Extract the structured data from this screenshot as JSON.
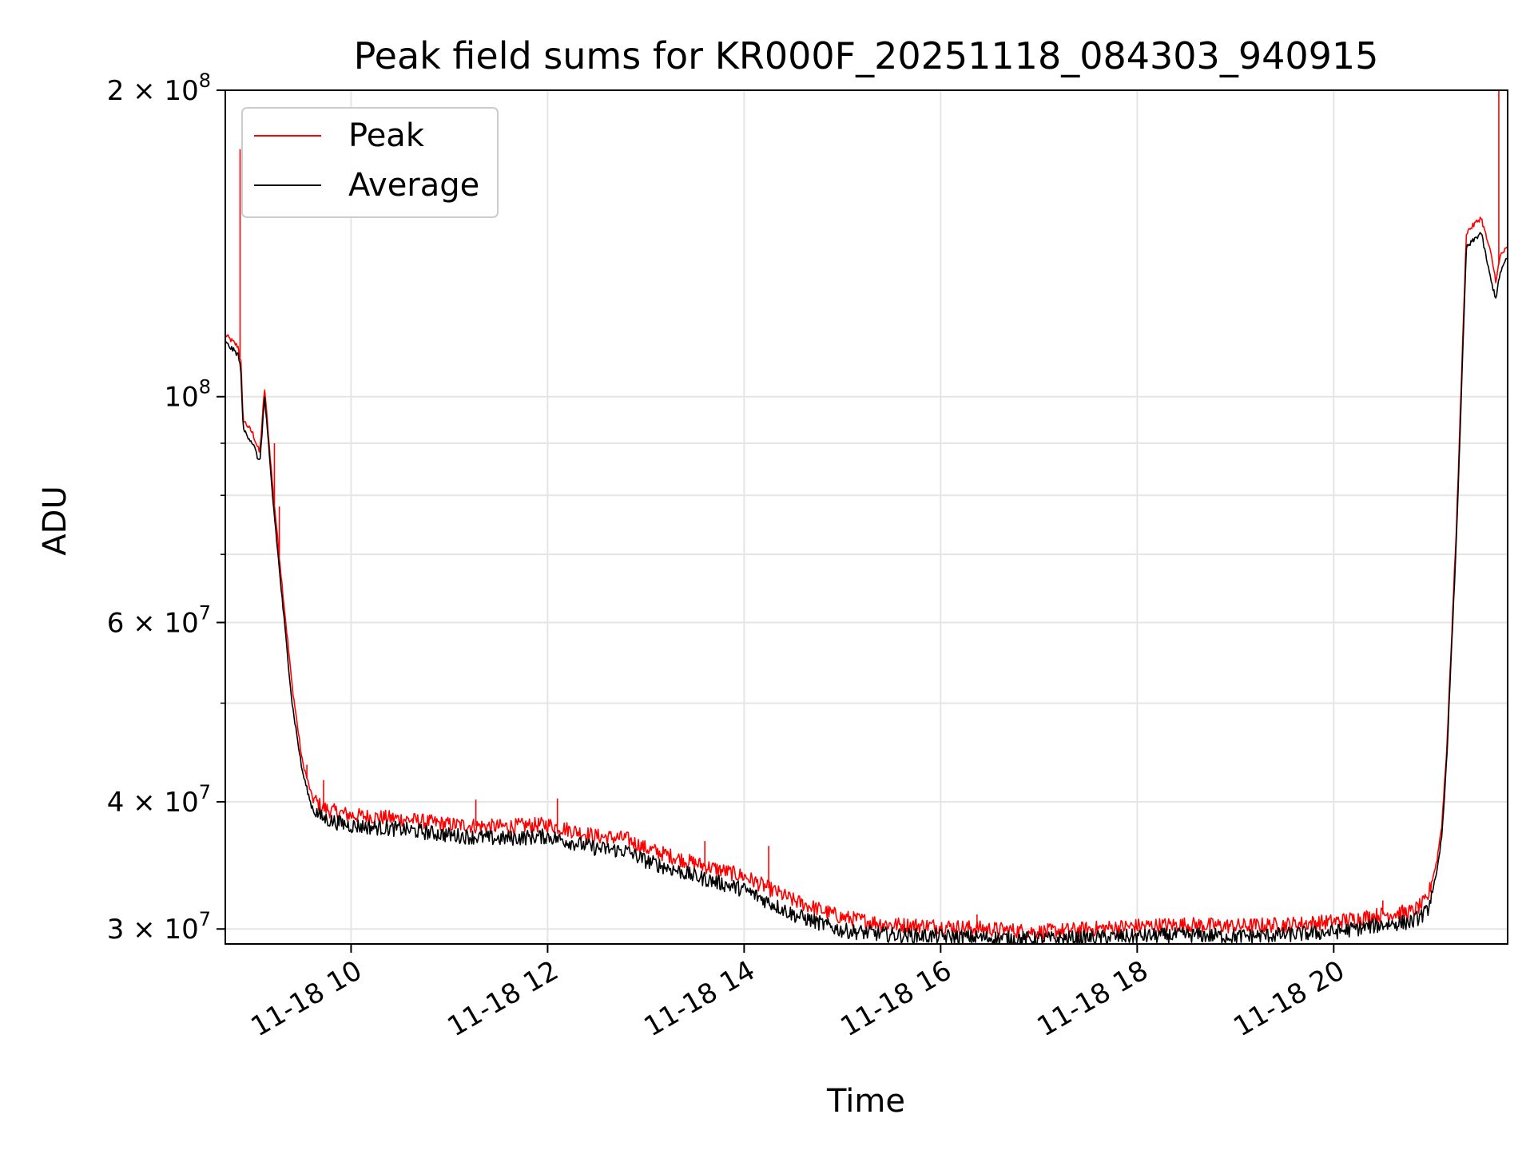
{
  "chart_data": {
    "type": "line",
    "title": "Peak field sums for KR000F_20251118_084303_940915",
    "xlabel": "Time",
    "ylabel": "ADU",
    "yscale": "log",
    "ylim": [
      29000000,
      200000000
    ],
    "xlim": [
      8.72,
      21.77
    ],
    "grid": true,
    "legend_position": "top-left",
    "x_tick_values": [
      10,
      12,
      14,
      16,
      18,
      20
    ],
    "x_tick_labels": [
      "11-18 10",
      "11-18 12",
      "11-18 14",
      "11-18 16",
      "11-18 18",
      "11-18 20"
    ],
    "y_tick_values": [
      30000000,
      40000000,
      60000000,
      100000000,
      200000000
    ],
    "y_tick_labels": [
      {
        "base": "3 × 10",
        "exp": "7"
      },
      {
        "base": "4 × 10",
        "exp": "7"
      },
      {
        "base": "6 × 10",
        "exp": "7"
      },
      {
        "base": "10",
        "exp": "8"
      },
      {
        "base": "2 × 10",
        "exp": "8"
      }
    ],
    "y_minor_tick_values": [
      50000000,
      70000000,
      80000000,
      90000000
    ],
    "x": [
      8.72,
      8.85,
      8.88,
      8.9,
      9.0,
      9.07,
      9.12,
      9.2,
      9.3,
      9.4,
      9.5,
      9.6,
      9.7,
      9.8,
      10.0,
      10.5,
      11.0,
      11.5,
      12.0,
      12.5,
      12.8,
      13.0,
      13.5,
      14.0,
      14.5,
      15.0,
      15.5,
      16.0,
      16.5,
      17.0,
      17.5,
      18.0,
      18.5,
      19.0,
      19.5,
      20.0,
      20.5,
      20.8,
      20.95,
      21.05,
      21.1,
      21.15,
      21.25,
      21.35,
      21.5,
      21.6,
      21.65,
      21.7,
      21.77
    ],
    "series": [
      {
        "name": "Peak",
        "color": "#ff0000",
        "values": [
          115000000,
          112000000,
          108000000,
          95000000,
          92000000,
          88000000,
          102000000,
          82000000,
          65000000,
          52000000,
          44000000,
          40500000,
          39500000,
          39200000,
          38800000,
          38500000,
          38000000,
          37800000,
          38000000,
          37000000,
          36800000,
          36000000,
          34800000,
          33800000,
          32000000,
          30800000,
          30300000,
          30200000,
          30000000,
          29800000,
          30000000,
          30200000,
          30300000,
          30200000,
          30300000,
          30500000,
          31000000,
          31200000,
          32000000,
          35000000,
          38000000,
          45000000,
          75000000,
          145000000,
          150000000,
          138000000,
          130000000,
          138000000,
          140000000
        ],
        "spikes": [
          {
            "x": 8.87,
            "y": 175000000
          },
          {
            "x": 9.22,
            "y": 90000000
          },
          {
            "x": 9.27,
            "y": 78000000
          },
          {
            "x": 9.3,
            "y": 65000000
          },
          {
            "x": 9.55,
            "y": 43500000
          },
          {
            "x": 9.72,
            "y": 42000000
          },
          {
            "x": 11.27,
            "y": 40200000
          },
          {
            "x": 12.1,
            "y": 40300000
          },
          {
            "x": 13.6,
            "y": 36600000
          },
          {
            "x": 14.25,
            "y": 36200000
          },
          {
            "x": 16.37,
            "y": 31000000
          },
          {
            "x": 20.5,
            "y": 32000000
          },
          {
            "x": 21.68,
            "y": 200000000
          }
        ]
      },
      {
        "name": "Average",
        "color": "#000000",
        "values": [
          113000000,
          110000000,
          106000000,
          93000000,
          90000000,
          86000000,
          100000000,
          80000000,
          63000000,
          50000000,
          43000000,
          39500000,
          38600000,
          38300000,
          37900000,
          37600000,
          37100000,
          36800000,
          37000000,
          36000000,
          35800000,
          35000000,
          33800000,
          32800000,
          31000000,
          29900000,
          29600000,
          29500000,
          29400000,
          29300000,
          29400000,
          29500000,
          29600000,
          29500000,
          29600000,
          29800000,
          30300000,
          30500000,
          31200000,
          34000000,
          37000000,
          44000000,
          73000000,
          140000000,
          145000000,
          130000000,
          125000000,
          133000000,
          137000000
        ],
        "spikes": []
      }
    ]
  }
}
